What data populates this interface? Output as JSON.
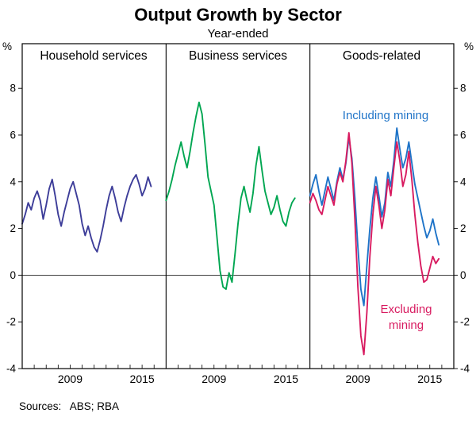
{
  "figure": {
    "title": "Output Growth by Sector",
    "subtitle": "Year-ended",
    "source": "Sources:   ABS; RBA"
  },
  "chart_data": {
    "type": "line",
    "title": "Output Growth by Sector",
    "subtitle": "Year-ended",
    "unit": "%",
    "ylim": [
      -4,
      9.9
    ],
    "yticks": [
      -4,
      -2,
      0,
      2,
      4,
      6,
      8
    ],
    "x_start": 2005,
    "x_end": 2017,
    "frequency": "quarterly",
    "xtick_years": [
      2009,
      2015
    ],
    "grid": false,
    "zero_line": true,
    "panels": [
      {
        "label": "Household services",
        "series": [
          {
            "name": "Household services",
            "color": "#3d3d99",
            "start_year": 2005,
            "values": [
              2.2,
              2.6,
              3.1,
              2.8,
              3.3,
              3.6,
              3.2,
              2.4,
              3.0,
              3.7,
              4.1,
              3.4,
              2.6,
              2.1,
              2.7,
              3.2,
              3.7,
              4.0,
              3.5,
              3.0,
              2.2,
              1.7,
              2.1,
              1.6,
              1.2,
              1.0,
              1.5,
              2.1,
              2.8,
              3.4,
              3.8,
              3.3,
              2.7,
              2.3,
              2.9,
              3.4,
              3.8,
              4.1,
              4.3,
              3.9,
              3.4,
              3.7,
              4.2,
              3.8
            ]
          }
        ]
      },
      {
        "label": "Business services",
        "series": [
          {
            "name": "Business services",
            "color": "#00a651",
            "start_year": 2005,
            "values": [
              3.2,
              3.6,
              4.1,
              4.7,
              5.2,
              5.7,
              5.1,
              4.6,
              5.3,
              6.1,
              6.8,
              7.4,
              6.9,
              5.6,
              4.2,
              3.6,
              3.0,
              1.6,
              0.2,
              -0.5,
              -0.6,
              0.1,
              -0.3,
              0.9,
              2.2,
              3.3,
              3.8,
              3.2,
              2.7,
              3.5,
              4.7,
              5.5,
              4.5,
              3.6,
              3.1,
              2.6,
              2.9,
              3.4,
              2.8,
              2.3,
              2.1,
              2.7,
              3.1,
              3.3
            ]
          }
        ]
      },
      {
        "label": "Goods-related",
        "series": [
          {
            "name": "Including mining",
            "color": "#1f74c8",
            "start_year": 2005,
            "values": [
              3.4,
              3.9,
              4.3,
              3.6,
              3.0,
              3.6,
              4.2,
              3.7,
              3.2,
              4.0,
              4.6,
              4.1,
              4.8,
              5.9,
              5.0,
              3.3,
              1.2,
              -0.6,
              -1.3,
              0.4,
              2.0,
              3.3,
              4.2,
              3.4,
              2.5,
              3.1,
              4.4,
              3.8,
              4.9,
              6.3,
              5.4,
              4.6,
              5.0,
              5.7,
              4.8,
              3.9,
              3.3,
              2.7,
              2.1,
              1.6,
              1.9,
              2.4,
              1.8,
              1.3
            ]
          },
          {
            "name": "Excluding mining",
            "color": "#d81b60",
            "start_year": 2005,
            "values": [
              3.1,
              3.5,
              3.2,
              2.8,
              2.6,
              3.2,
              3.8,
              3.4,
              3.0,
              3.9,
              4.4,
              4.0,
              4.9,
              6.1,
              4.8,
              2.4,
              -0.5,
              -2.6,
              -3.4,
              -1.6,
              0.8,
              2.6,
              3.8,
              3.0,
              2.0,
              2.8,
              4.1,
              3.4,
              4.6,
              5.7,
              4.9,
              3.8,
              4.3,
              5.3,
              4.1,
              2.6,
              1.4,
              0.4,
              -0.3,
              -0.2,
              0.3,
              0.8,
              0.5,
              0.7
            ]
          }
        ],
        "annotations": [
          {
            "text": "Including mining",
            "color": "#1f74c8"
          },
          {
            "text": "Excluding mining",
            "color": "#d81b60"
          }
        ]
      }
    ]
  }
}
